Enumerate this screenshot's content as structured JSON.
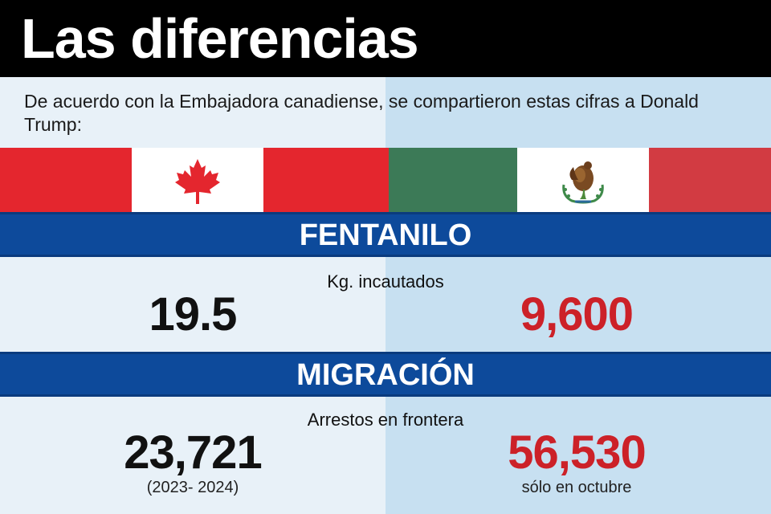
{
  "title": "Las diferencias",
  "intro": "De acuerdo con la Embajadora canadiense, se compartieron estas cifras a Donald Trump:",
  "flags": {
    "left": {
      "country": "Canadá",
      "icon": "maple-leaf-icon",
      "red": "#e4262e",
      "white": "#ffffff"
    },
    "right": {
      "country": "México",
      "icon": "eagle-coat-of-arms-icon",
      "green": "#3c7a57",
      "white": "#ffffff",
      "red": "#d23b42"
    }
  },
  "colors": {
    "band": "#0d4a9b",
    "accent_red": "#cc2128",
    "panel_left": "#e8f1f8",
    "panel_right": "#c7e0f1"
  },
  "sections": {
    "fentanilo": {
      "heading": "FENTANILO",
      "sublabel": "Kg. incautados",
      "canada_value": "19.5",
      "mexico_value": "9,600"
    },
    "migracion": {
      "heading": "MIGRACIÓN",
      "sublabel": "Arrestos en frontera",
      "canada_value": "23,721",
      "canada_note": "(2023- 2024)",
      "mexico_value": "56,530",
      "mexico_note": "sólo en octubre"
    }
  }
}
